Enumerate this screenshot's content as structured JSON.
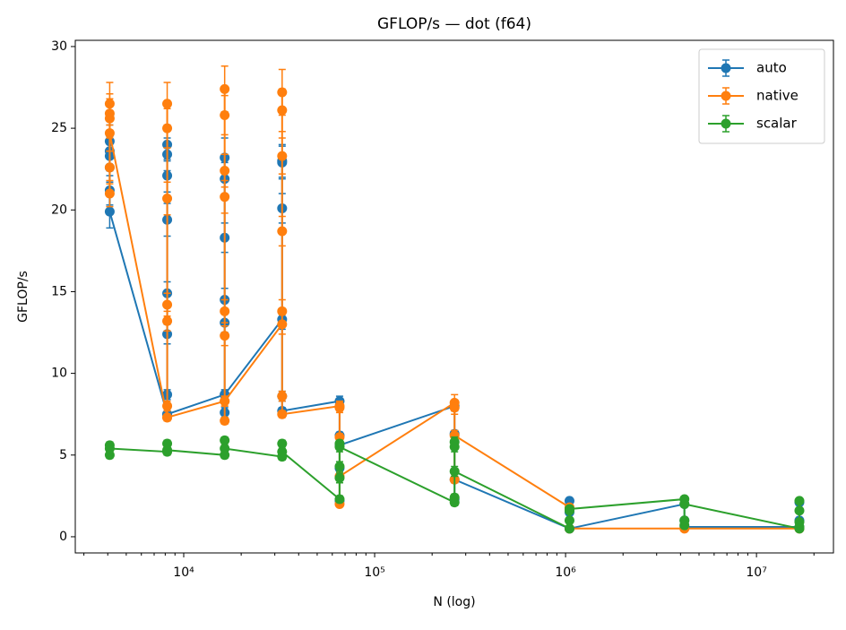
{
  "chart_data": {
    "type": "errorbar",
    "title": "GFLOP/s — dot (f64)",
    "x_label": "N (log)",
    "y_label": "GFLOP/s",
    "xscale": "log",
    "xlim": [
      2704,
      25300000
    ],
    "ylim": [
      -0.99,
      30.38
    ],
    "xticks": [
      {
        "value": 10000,
        "label": "10⁴"
      },
      {
        "value": 100000,
        "label": "10⁵"
      },
      {
        "value": 1000000,
        "label": "10⁶"
      },
      {
        "value": 10000000,
        "label": "10⁷"
      }
    ],
    "yticks": [
      0,
      5,
      10,
      15,
      20,
      25,
      30
    ],
    "legend": "upper right",
    "series": [
      {
        "name": "auto",
        "color": "#1f77b4",
        "x": [
          4096,
          4096,
          4096,
          4096,
          4096,
          4096,
          8192,
          8192,
          8192,
          8192,
          8192,
          8192,
          8192,
          8192,
          8192,
          16384,
          16384,
          16384,
          16384,
          16384,
          16384,
          16384,
          16384,
          32768,
          32768,
          32768,
          32768,
          32768,
          32768,
          65536,
          65536,
          65536,
          65536,
          65536,
          262144,
          262144,
          262144,
          262144,
          1048576,
          1048576,
          1048576,
          1048576,
          4194304,
          4194304,
          4194304,
          16777216,
          16777216,
          16777216
        ],
        "values": [
          22.6,
          23.3,
          24.2,
          21.2,
          23.6,
          19.9,
          7.5,
          24.0,
          22.1,
          19.4,
          12.4,
          14.9,
          23.4,
          8.7,
          7.5,
          8.7,
          23.2,
          21.9,
          18.3,
          14.5,
          13.1,
          7.6,
          8.7,
          13.3,
          23.0,
          22.9,
          20.1,
          8.6,
          7.7,
          8.3,
          6.2,
          4.2,
          2.2,
          5.6,
          8.0,
          6.3,
          2.3,
          3.5,
          0.5,
          2.2,
          1.5,
          0.5,
          2.0,
          1.0,
          0.6,
          0.6,
          1.0,
          2.1
        ],
        "errors": [
          0.9,
          0.9,
          1.0,
          0.9,
          0.9,
          1.0,
          0.2,
          1.0,
          1.0,
          1.0,
          0.6,
          0.7,
          1.0,
          0.3,
          0.2,
          0.2,
          1.2,
          1.0,
          0.9,
          0.7,
          0.6,
          0.3,
          0.3,
          0.6,
          1.0,
          1.0,
          0.9,
          0.3,
          0.2,
          0.3,
          0.2,
          0.2,
          0.1,
          0.2,
          0.3,
          0.2,
          0.1,
          0.2,
          0.05,
          0.1,
          0.1,
          0.05,
          0.1,
          0.05,
          0.05,
          0.05,
          0.05,
          0.1
        ]
      },
      {
        "name": "native",
        "color": "#ff7f0e",
        "x": [
          4096,
          4096,
          4096,
          4096,
          4096,
          4096,
          8192,
          8192,
          8192,
          8192,
          8192,
          8192,
          8192,
          8192,
          16384,
          16384,
          16384,
          16384,
          16384,
          16384,
          16384,
          16384,
          16384,
          32768,
          32768,
          32768,
          32768,
          32768,
          32768,
          32768,
          32768,
          65536,
          65536,
          65536,
          65536,
          65536,
          262144,
          262144,
          262144,
          262144,
          1048576,
          1048576,
          4194304,
          16777216
        ],
        "values": [
          21.0,
          26.5,
          25.9,
          25.6,
          22.6,
          24.7,
          7.3,
          26.5,
          25.0,
          20.7,
          13.2,
          14.2,
          8.0,
          7.3,
          8.3,
          27.4,
          25.8,
          22.4,
          20.8,
          13.8,
          12.3,
          7.1,
          8.3,
          13.0,
          27.2,
          26.1,
          23.3,
          18.7,
          13.8,
          8.6,
          7.5,
          8.0,
          7.9,
          6.1,
          2.0,
          3.7,
          8.2,
          7.9,
          3.5,
          6.2,
          1.8,
          0.5,
          0.5,
          0.5
        ],
        "errors": [
          0.8,
          1.3,
          1.2,
          1.2,
          1.0,
          1.1,
          0.2,
          1.3,
          1.2,
          1.0,
          0.6,
          0.7,
          0.3,
          0.2,
          0.3,
          1.4,
          1.2,
          1.0,
          1.0,
          0.7,
          0.6,
          0.2,
          0.3,
          0.6,
          1.4,
          1.3,
          1.1,
          0.9,
          0.7,
          0.3,
          0.2,
          0.3,
          0.3,
          0.2,
          0.1,
          0.1,
          0.5,
          0.4,
          0.2,
          0.3,
          0.1,
          0.05,
          0.05,
          0.05
        ]
      },
      {
        "name": "scalar",
        "color": "#2ca02c",
        "x": [
          4096,
          4096,
          4096,
          8192,
          8192,
          8192,
          16384,
          16384,
          16384,
          32768,
          32768,
          32768,
          65536,
          65536,
          65536,
          65536,
          65536,
          262144,
          262144,
          262144,
          262144,
          262144,
          1048576,
          1048576,
          1048576,
          1048576,
          4194304,
          4194304,
          4194304,
          4194304,
          16777216,
          16777216,
          16777216,
          16777216,
          16777216
        ],
        "values": [
          5.0,
          5.6,
          5.4,
          5.2,
          5.7,
          5.3,
          5.0,
          5.9,
          5.4,
          4.9,
          5.7,
          5.2,
          2.3,
          3.6,
          4.3,
          5.7,
          5.5,
          2.1,
          2.4,
          5.5,
          5.8,
          4.0,
          0.5,
          1.6,
          1.0,
          1.7,
          2.3,
          1.0,
          0.7,
          2.0,
          0.5,
          2.2,
          1.6,
          0.9,
          0.6
        ],
        "errors": [
          0.2,
          0.2,
          0.2,
          0.2,
          0.2,
          0.2,
          0.2,
          0.2,
          0.2,
          0.2,
          0.2,
          0.2,
          0.2,
          0.3,
          0.3,
          0.2,
          0.3,
          0.2,
          0.2,
          0.3,
          0.3,
          0.3,
          0.1,
          0.1,
          0.1,
          0.1,
          0.1,
          0.1,
          0.1,
          0.1,
          0.1,
          0.1,
          0.1,
          0.1,
          0.1
        ]
      }
    ]
  }
}
